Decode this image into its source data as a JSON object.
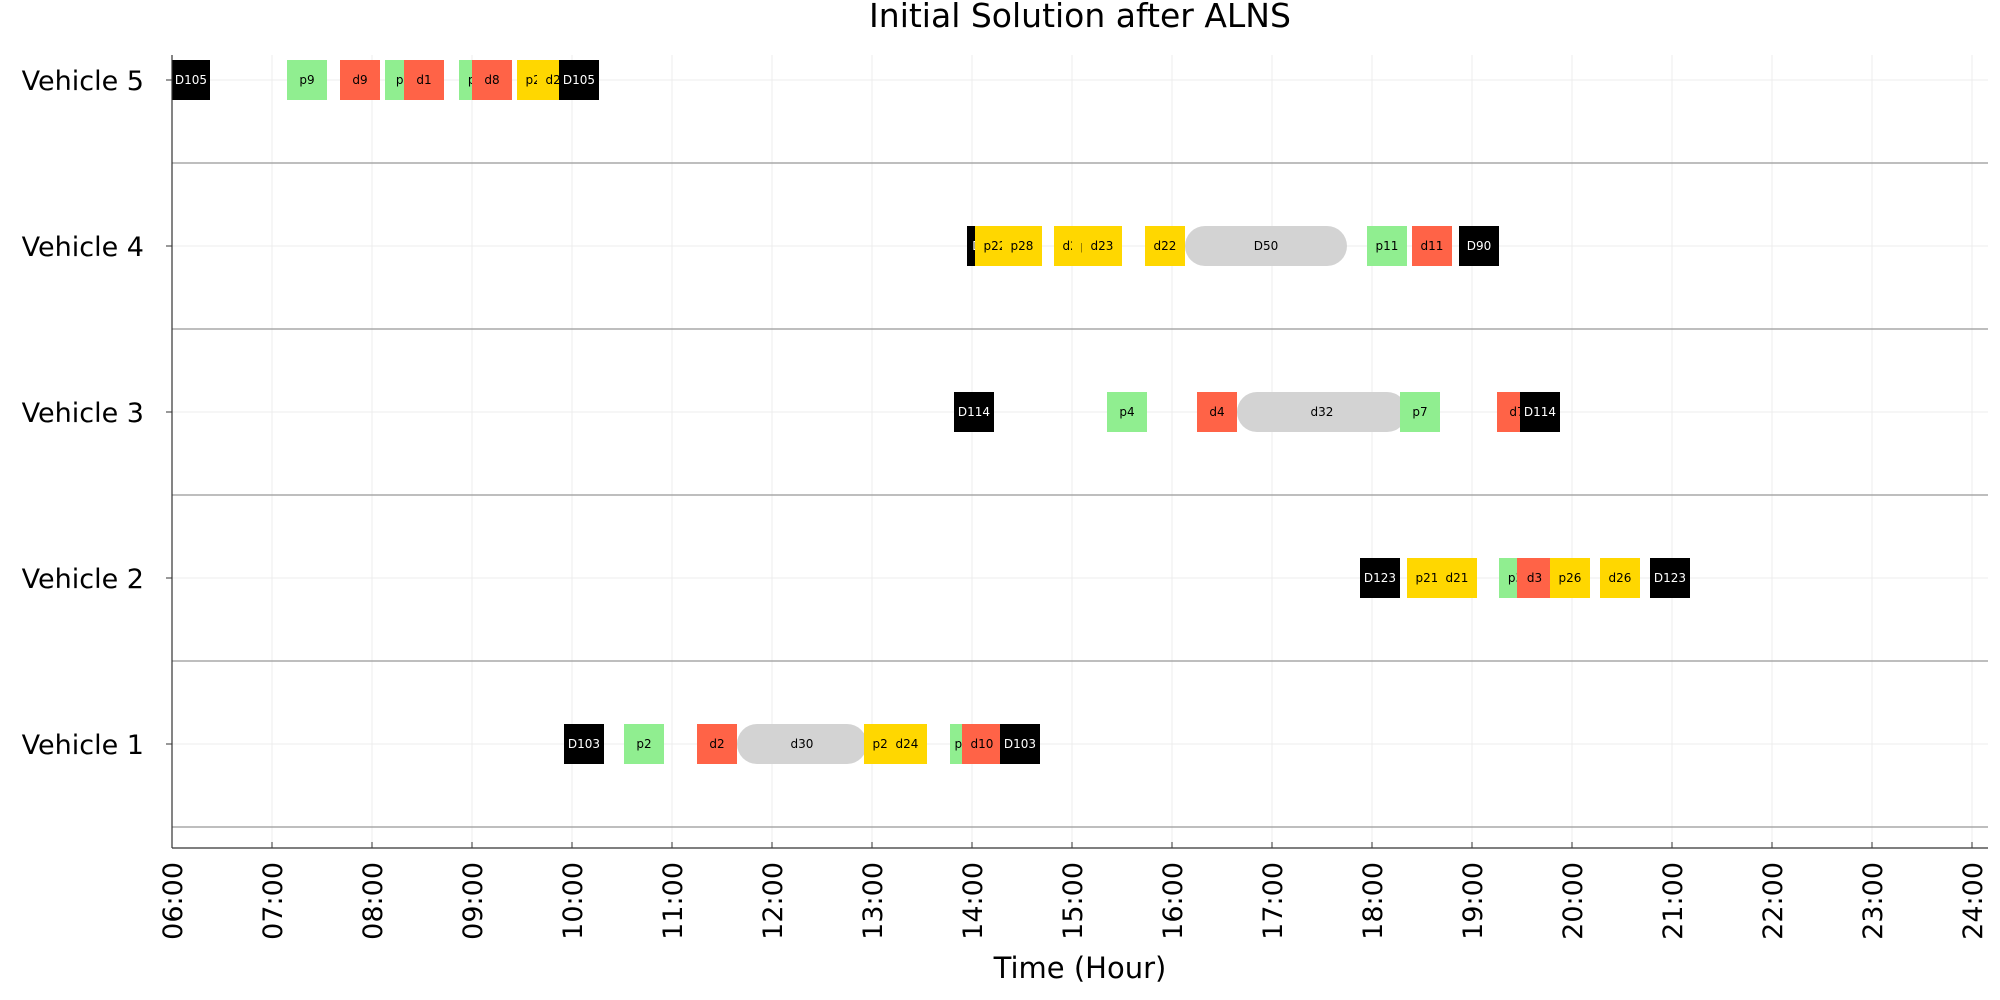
{
  "chart_data": {
    "type": "gantt",
    "title": "Initial Solution after ALNS",
    "xlabel": "Time (Hour)",
    "x_ticks": [
      "06:00",
      "07:00",
      "08:00",
      "09:00",
      "10:00",
      "11:00",
      "12:00",
      "13:00",
      "14:00",
      "15:00",
      "16:00",
      "17:00",
      "18:00",
      "19:00",
      "20:00",
      "21:00",
      "22:00",
      "23:00",
      "24:00"
    ],
    "xlim_hours": [
      6,
      24.2
    ],
    "grid": true,
    "colors": {
      "pickup": "#90ee90",
      "delivery": "#ff6347",
      "paired": "#ffd700",
      "depot": "#000000",
      "waiting": "#d3d3d3"
    },
    "rows": [
      {
        "label": "Vehicle 5",
        "blocks": [
          {
            "label": "D105",
            "start": 6.0,
            "end": 6.38,
            "kind": "depot"
          },
          {
            "label": "p9",
            "start": 7.15,
            "end": 7.55,
            "kind": "pickup"
          },
          {
            "label": "d9",
            "start": 7.68,
            "end": 8.08,
            "kind": "delivery"
          },
          {
            "label": "p1",
            "start": 8.13,
            "end": 8.5,
            "kind": "pickup"
          },
          {
            "label": "d1",
            "start": 8.32,
            "end": 8.72,
            "kind": "delivery"
          },
          {
            "label": "p8",
            "start": 8.87,
            "end": 9.2,
            "kind": "pickup"
          },
          {
            "label": "d8",
            "start": 9.0,
            "end": 9.4,
            "kind": "delivery"
          },
          {
            "label": "p27",
            "start": 9.45,
            "end": 9.85,
            "kind": "paired"
          },
          {
            "label": "d27",
            "start": 9.65,
            "end": 10.05,
            "kind": "paired"
          },
          {
            "label": "D105",
            "start": 9.87,
            "end": 10.27,
            "kind": "depot"
          }
        ]
      },
      {
        "label": "Vehicle 4",
        "blocks": [
          {
            "label": "D90",
            "start": 13.95,
            "end": 14.3,
            "kind": "depot"
          },
          {
            "label": "p22",
            "start": 14.03,
            "end": 14.43,
            "kind": "paired"
          },
          {
            "label": "p28",
            "start": 14.3,
            "end": 14.7,
            "kind": "paired"
          },
          {
            "label": "d28",
            "start": 14.82,
            "end": 15.22,
            "kind": "paired"
          },
          {
            "label": "p23",
            "start": 15.0,
            "end": 15.4,
            "kind": "paired"
          },
          {
            "label": "d23",
            "start": 15.1,
            "end": 15.5,
            "kind": "paired"
          },
          {
            "label": "d22",
            "start": 15.73,
            "end": 16.13,
            "kind": "paired"
          },
          {
            "label": "D50",
            "start": 16.13,
            "end": 17.75,
            "kind": "waiting"
          },
          {
            "label": "p11",
            "start": 17.95,
            "end": 18.35,
            "kind": "pickup"
          },
          {
            "label": "d11",
            "start": 18.4,
            "end": 18.8,
            "kind": "delivery"
          },
          {
            "label": "D90",
            "start": 18.87,
            "end": 19.27,
            "kind": "depot"
          }
        ]
      },
      {
        "label": "Vehicle 3",
        "blocks": [
          {
            "label": "D114",
            "start": 13.82,
            "end": 14.22,
            "kind": "depot"
          },
          {
            "label": "p4",
            "start": 15.35,
            "end": 15.75,
            "kind": "pickup"
          },
          {
            "label": "d4",
            "start": 16.25,
            "end": 16.65,
            "kind": "delivery"
          },
          {
            "label": "d32",
            "start": 16.65,
            "end": 18.35,
            "kind": "waiting"
          },
          {
            "label": "p7",
            "start": 18.28,
            "end": 18.68,
            "kind": "pickup"
          },
          {
            "label": "d7",
            "start": 19.25,
            "end": 19.65,
            "kind": "delivery"
          },
          {
            "label": "D114",
            "start": 19.48,
            "end": 19.88,
            "kind": "depot"
          }
        ]
      },
      {
        "label": "Vehicle 2",
        "blocks": [
          {
            "label": "D123",
            "start": 17.88,
            "end": 18.28,
            "kind": "depot"
          },
          {
            "label": "p21",
            "start": 18.35,
            "end": 18.75,
            "kind": "paired"
          },
          {
            "label": "d21",
            "start": 18.65,
            "end": 19.05,
            "kind": "paired"
          },
          {
            "label": "p3",
            "start": 19.27,
            "end": 19.6,
            "kind": "pickup"
          },
          {
            "label": "d3",
            "start": 19.45,
            "end": 19.8,
            "kind": "delivery"
          },
          {
            "label": "p26",
            "start": 19.78,
            "end": 20.18,
            "kind": "paired"
          },
          {
            "label": "d26",
            "start": 20.28,
            "end": 20.68,
            "kind": "paired"
          },
          {
            "label": "D123",
            "start": 20.78,
            "end": 21.18,
            "kind": "depot"
          }
        ]
      },
      {
        "label": "Vehicle 1",
        "blocks": [
          {
            "label": "D103",
            "start": 9.92,
            "end": 10.32,
            "kind": "depot"
          },
          {
            "label": "p2",
            "start": 10.52,
            "end": 10.92,
            "kind": "pickup"
          },
          {
            "label": "d2",
            "start": 11.25,
            "end": 11.65,
            "kind": "delivery"
          },
          {
            "label": "d30",
            "start": 11.65,
            "end": 12.95,
            "kind": "waiting"
          },
          {
            "label": "p24",
            "start": 12.92,
            "end": 13.32,
            "kind": "paired"
          },
          {
            "label": "d24",
            "start": 13.15,
            "end": 13.55,
            "kind": "paired"
          },
          {
            "label": "p10",
            "start": 13.78,
            "end": 14.1,
            "kind": "pickup"
          },
          {
            "label": "d10",
            "start": 13.9,
            "end": 14.3,
            "kind": "delivery"
          },
          {
            "label": "D103",
            "start": 14.28,
            "end": 14.68,
            "kind": "depot"
          }
        ]
      }
    ]
  }
}
